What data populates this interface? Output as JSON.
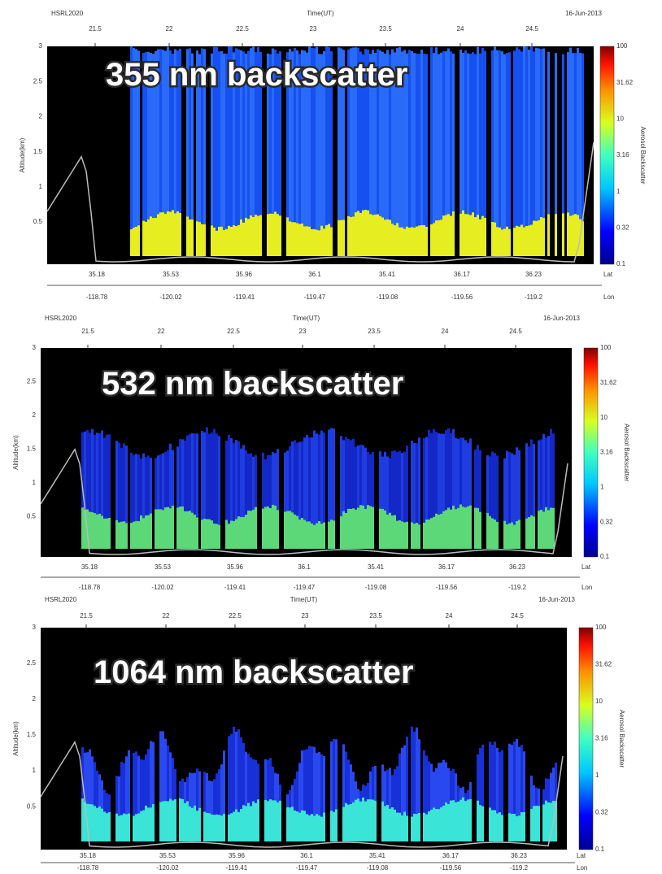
{
  "panels": [
    {
      "title": "355 nm backscatter",
      "instrument": "HSRL2020",
      "x_label": "Time(UT)",
      "date": "16-Jun-2013",
      "y_label": "Altitude(km)",
      "time_ticks": [
        "21.5",
        "22",
        "22.5",
        "23",
        "23.5",
        "24",
        "24.5"
      ],
      "altitude_ticks": [
        "3",
        "2.5",
        "2",
        "1.5",
        "1",
        "0.5"
      ],
      "latitude_ticks": [
        "35.18",
        "35.53",
        "35.96",
        "36.1",
        "35.41",
        "36.17",
        "36.23"
      ],
      "longitude_ticks": [
        "-118.78",
        "-120.02",
        "-119.41",
        "-119.47",
        "-119.08",
        "-119.56",
        "-119.2"
      ],
      "lat_label": "Lat",
      "lon_label": "Lon",
      "colorbar_ticks": [
        "100",
        "31.62",
        "10",
        "3.16",
        "1",
        "0.32",
        "0.1"
      ],
      "colorbar_label": "Aerosol Backscatter"
    },
    {
      "title": "532 nm backscatter",
      "instrument": "HSRL2020",
      "x_label": "Time(UT)",
      "date": "16-Jun-2013",
      "y_label": "Altitude(km)",
      "time_ticks": [
        "21.5",
        "22",
        "22.5",
        "23",
        "23.5",
        "24",
        "24.5"
      ],
      "altitude_ticks": [
        "3",
        "2.5",
        "2",
        "1.5",
        "1",
        "0.5"
      ],
      "latitude_ticks": [
        "35.18",
        "35.53",
        "35.96",
        "36.1",
        "35.41",
        "36.17",
        "36.23"
      ],
      "longitude_ticks": [
        "-118.78",
        "-120.02",
        "-119.41",
        "-119.47",
        "-119.08",
        "-119.56",
        "-119.2"
      ],
      "lat_label": "Lat",
      "lon_label": "Lon",
      "colorbar_ticks": [
        "100",
        "31.62",
        "10",
        "3.16",
        "1",
        "0.32",
        "0.1"
      ],
      "colorbar_label": "Aerosol Backscatter"
    },
    {
      "title": "1064 nm backscatter",
      "instrument": "HSRL2020",
      "x_label": "Time(UT)",
      "date": "16-Jun-2013",
      "y_label": "Altitude(km)",
      "time_ticks": [
        "21.5",
        "22",
        "22.5",
        "23",
        "23.5",
        "24",
        "24.5"
      ],
      "altitude_ticks": [
        "3",
        "2.5",
        "2",
        "1.5",
        "1",
        "0.5"
      ],
      "latitude_ticks": [
        "35.18",
        "35.53",
        "35.96",
        "36.1",
        "35.41",
        "36.17",
        "36.23"
      ],
      "longitude_ticks": [
        "-118.78",
        "-120.02",
        "-119.41",
        "-119.47",
        "-119.08",
        "-119.56",
        "-119.2"
      ],
      "lat_label": "Lat",
      "lon_label": "Lon",
      "colorbar_ticks": [
        "100",
        "31.62",
        "10",
        "3.16",
        "1",
        "0.32",
        "0.1"
      ],
      "colorbar_label": "Aerosol Backscatter"
    }
  ]
}
